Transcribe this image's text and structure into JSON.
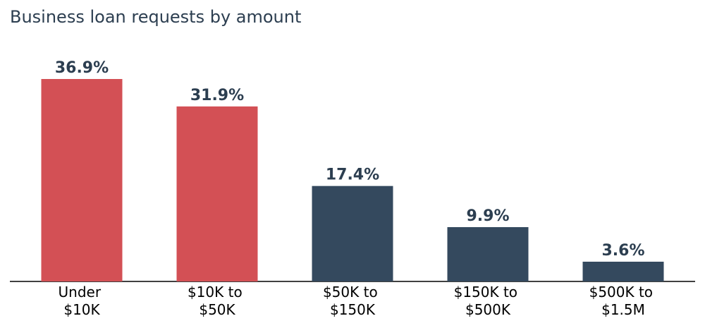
{
  "chart_data": {
    "type": "bar",
    "title": "Business loan requests by amount",
    "categories": [
      "Under $10K",
      "$10K to $50K",
      "$50K to $150K",
      "$150K to $500K",
      "$500K to $1.5M"
    ],
    "values": [
      36.9,
      31.9,
      17.4,
      9.9,
      3.6
    ],
    "value_labels": [
      "36.9%",
      "31.9%",
      "17.4%",
      "9.9%",
      "3.6%"
    ],
    "colors": [
      "#d35055",
      "#d35055",
      "#34495e",
      "#34495e",
      "#34495e"
    ]
  }
}
